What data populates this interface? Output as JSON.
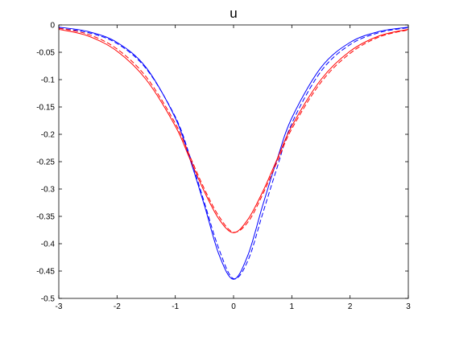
{
  "chart_data": {
    "type": "line",
    "title": "u",
    "xlabel": "",
    "ylabel": "",
    "xlim": [
      -3,
      3
    ],
    "ylim": [
      -0.5,
      0
    ],
    "xticks": [
      "-3",
      "-2",
      "-1",
      "0",
      "1",
      "2",
      "3"
    ],
    "yticks": [
      "0",
      "-0.05",
      "-0.1",
      "-0.15",
      "-0.2",
      "-0.25",
      "-0.3",
      "-0.35",
      "-0.4",
      "-0.45",
      "-0.5"
    ],
    "grid": false,
    "legend": "none",
    "series": [
      {
        "color": "#0000ff",
        "style": "solid",
        "x": [
          -3,
          -2.5,
          -2,
          -1.5,
          -1,
          -0.75,
          -0.5,
          -0.25,
          0,
          0.25,
          0.5,
          0.75,
          1,
          1.5,
          2,
          2.5,
          3
        ],
        "y": [
          -0.004,
          -0.012,
          -0.032,
          -0.078,
          -0.17,
          -0.245,
          -0.33,
          -0.42,
          -0.465,
          -0.42,
          -0.33,
          -0.245,
          -0.17,
          -0.078,
          -0.032,
          -0.012,
          -0.004
        ]
      },
      {
        "color": "#0000ff",
        "style": "dashed",
        "x": [
          -3,
          -2.5,
          -2,
          -1.5,
          -1,
          -0.75,
          -0.5,
          -0.25,
          0,
          0.25,
          0.5,
          0.75,
          1,
          1.5,
          2,
          2.5,
          3
        ],
        "y": [
          -0.006,
          -0.014,
          -0.034,
          -0.08,
          -0.168,
          -0.24,
          -0.325,
          -0.41,
          -0.464,
          -0.43,
          -0.345,
          -0.26,
          -0.18,
          -0.085,
          -0.036,
          -0.014,
          -0.005
        ]
      },
      {
        "color": "#ff0000",
        "style": "solid",
        "x": [
          -3,
          -2.5,
          -2,
          -1.5,
          -1,
          -0.75,
          -0.5,
          -0.25,
          0,
          0.25,
          0.5,
          0.75,
          1,
          1.5,
          2,
          2.5,
          3
        ],
        "y": [
          -0.008,
          -0.02,
          -0.048,
          -0.1,
          -0.185,
          -0.245,
          -0.305,
          -0.355,
          -0.38,
          -0.355,
          -0.305,
          -0.245,
          -0.185,
          -0.1,
          -0.048,
          -0.02,
          -0.008
        ]
      },
      {
        "color": "#ff0000",
        "style": "dashed",
        "x": [
          -3,
          -2.5,
          -2,
          -1.5,
          -1,
          -0.75,
          -0.5,
          -0.25,
          0,
          0.25,
          0.5,
          0.75,
          1,
          1.5,
          2,
          2.5,
          3
        ],
        "y": [
          -0.006,
          -0.017,
          -0.044,
          -0.095,
          -0.18,
          -0.24,
          -0.3,
          -0.35,
          -0.379,
          -0.36,
          -0.31,
          -0.25,
          -0.19,
          -0.105,
          -0.052,
          -0.022,
          -0.009
        ]
      }
    ]
  }
}
